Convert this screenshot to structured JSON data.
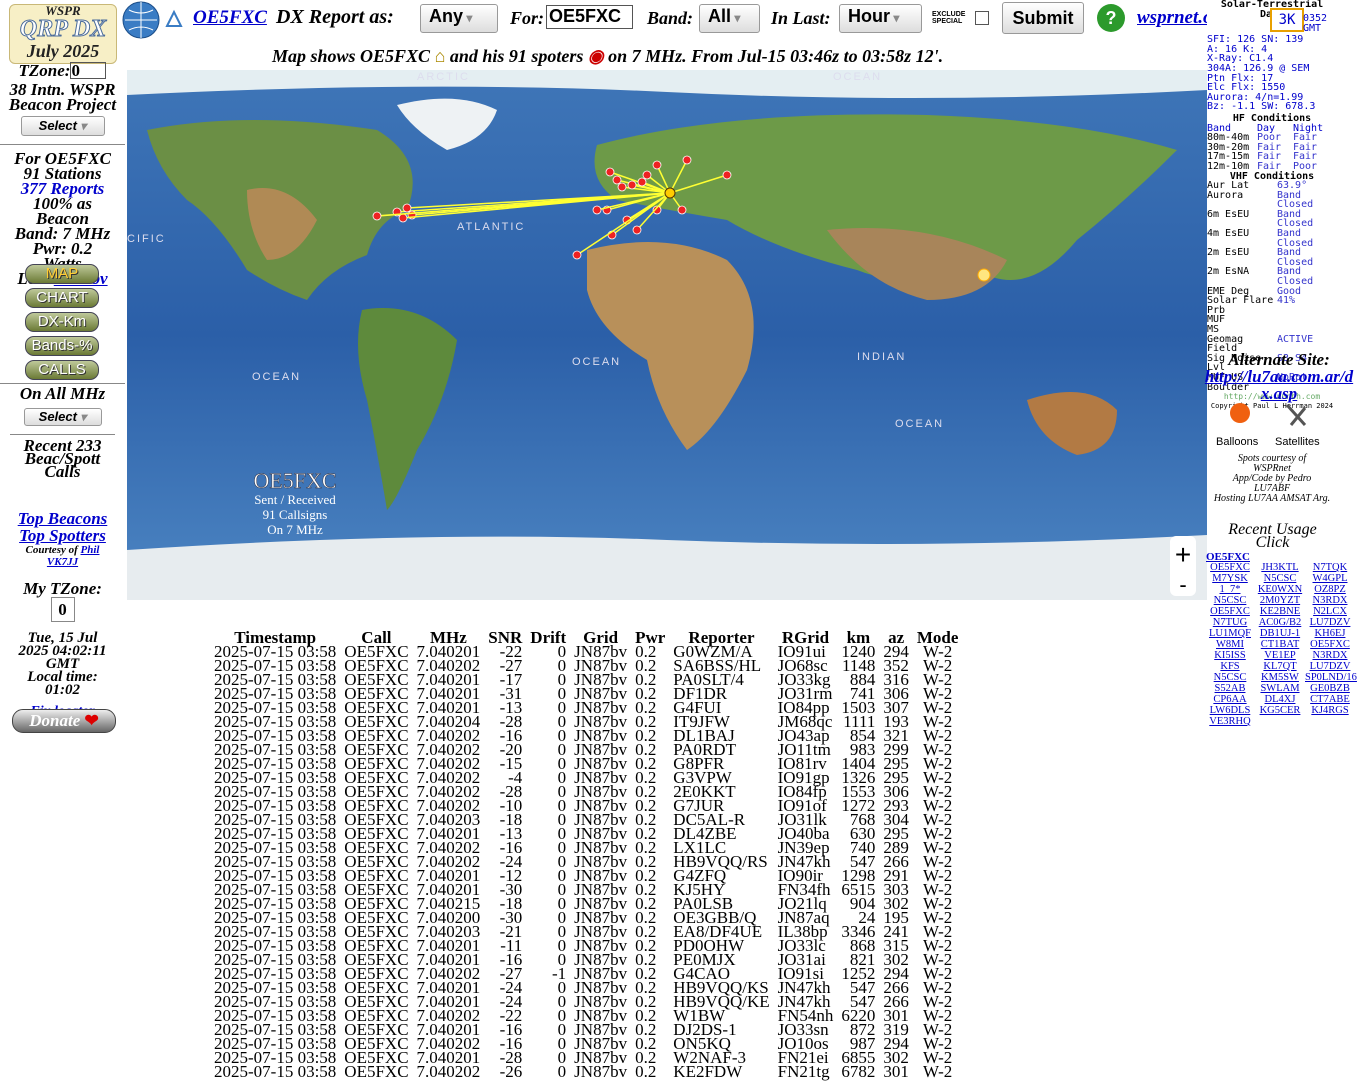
{
  "header": {
    "brand_top": "WSPR",
    "brand": "QRP DX",
    "brand_date": "July 2025",
    "link_call": "OE5FXC",
    "report_label": "DX Report as:",
    "report_select": "Any",
    "for_label": "For:",
    "for_value": "OE5FXC",
    "band_label": "Band:",
    "band_select": "All",
    "last_label": "In Last:",
    "last_select": "Hour",
    "exclude_label": "EXCLUDE SPECIAL",
    "submit": "Submit",
    "help": "?",
    "site_link": "wsprnet.org",
    "badge": "3K"
  },
  "caption": {
    "part1": "Map shows OE5FXC",
    "part2": "and his 91 spoters",
    "part3": "on 7 MHz. From Jul-15 03:46z to 03:58z 12'."
  },
  "sidebar": {
    "tzone_label": "TZone:",
    "tzone_value": "0",
    "beacon_project": "38 Intn. WSPR Beacon Project",
    "select": "Select",
    "for_call": "For OE5FXC",
    "stations": "91 Stations",
    "reports": "377 Reports",
    "beacon_pct": "100% as Beacon",
    "band": "Band: 7 MHz",
    "pwr": "Pwr: 0.2 Watts",
    "loc_label": "Loc:",
    "loc": "JN87bv",
    "buttons": [
      "MAP",
      "CHART",
      "DX-Km",
      "Bands-%",
      "CALLS"
    ],
    "all_mhz": "On All MHz",
    "select2": "Select",
    "recent": "Recent 233 Beac/Spott Calls",
    "top_beacons": "Top Beacons",
    "top_spotters": "Top Spotters",
    "courtesy": "Courtesy of",
    "courtesy_name": "Phil VK7JJ",
    "my_tz": "My TZone:",
    "my_tz_value": "0",
    "date": "Tue, 15 Jul 2025 04:02:11 GMT",
    "local_label": "Local time:",
    "local_time": "01:02",
    "fix": "Fix locator",
    "donate": "Donate"
  },
  "map": {
    "labels": [
      "ARCTIC",
      "OCEAN",
      "ATLANTIC",
      "OCEAN",
      "INDIAN",
      "OCEAN",
      "OCEAN",
      "CIFIC"
    ],
    "overlay_call": "OE5FXC",
    "overlay_1": "Sent / Received",
    "overlay_2": "91 Callsigns",
    "overlay_3": "On 7 MHz",
    "zoom_in": "+",
    "zoom_out": "-"
  },
  "solar": {
    "title": "Solar-Terrestrial Data",
    "time": "0352 GMT",
    "lines": [
      "SFI: 126  SN: 139",
      "A: 16  K: 4",
      "X-Ray: C1.4",
      "304A: 126.9 @ SEM",
      "Ptn Flx: 17",
      "Elc Flx: 1550",
      "Aurora: 4/n=1.99",
      "Bz: -1.1  SW: 678.3"
    ],
    "hf_title": "HF Conditions",
    "hf_rows": [
      [
        "Band",
        "Day",
        "Night"
      ],
      [
        "80m-40m",
        "Poor",
        "Fair"
      ],
      [
        "30m-20m",
        "Fair",
        "Fair"
      ],
      [
        "17m-15m",
        "Fair",
        "Fair"
      ],
      [
        "12m-10m",
        "Fair",
        "Poor"
      ]
    ],
    "vhf_title": "VHF Conditions",
    "vhf_rows": [
      [
        "Aur Lat",
        "63.9°"
      ],
      [
        "Aurora",
        "Band Closed"
      ],
      [
        "6m EsEU",
        "Band Closed"
      ],
      [
        "4m EsEU",
        "Band Closed"
      ],
      [
        "2m EsEU",
        "Band Closed"
      ],
      [
        "2m EsNA",
        "Band Closed"
      ],
      [
        "EME Deg",
        "Good"
      ],
      [
        "Solar Flare Prb",
        "41%"
      ],
      [
        "MUF",
        ""
      ],
      [
        "MS",
        ""
      ],
      [
        "Geomag Field",
        "ACTIVE"
      ],
      [
        "Sig Noise Lvl",
        "S3-S4"
      ],
      [
        "MUF US Boulder",
        "NoRpt"
      ]
    ],
    "url": "http://www.n0nbh.com",
    "copyright": "Copyright Paul L Herrman 2024"
  },
  "right": {
    "alt_title": "Alternate Site:",
    "alt_link": "http://lu7aa.com.ar/dx.asp",
    "balloons": "Balloons",
    "satellites": "Satellites",
    "credits": [
      "Spots courtesy of",
      "WSPRnet",
      "App/Code by Pedro",
      "LU7ABF",
      "Hosting LU7AA AMSAT Arg."
    ],
    "usage_title": "Recent Usage",
    "usage_click": "Click",
    "usage_header": "OE5FXC",
    "usage": [
      "OE5FXC",
      "JH3KTL",
      "N7TQK",
      "M7YSK",
      "N5CSC",
      "W4GPL",
      "1_7*",
      "KE0WXN",
      "OZ8PZ",
      "N5CSC",
      "2M0YZT",
      "N3RDX",
      "OE5FXC",
      "KE2BNE",
      "N2LCX",
      "N7TUG",
      "AC0G/B2",
      "LU7DZV",
      "LU1MQF",
      "DB1UJ-1",
      "KH6EJ",
      "W8MI",
      "CT1BAT",
      "OE5FXC",
      "KI5ISS",
      "VE1EP",
      "N3RDX",
      "KFS",
      "KL7QT",
      "LU7DZV",
      "N5CSC",
      "KM5SW",
      "SP0LND/16",
      "S52AB",
      "SWLAM",
      "GE0BZB",
      "CP6AA",
      "DL4XJ",
      "CT7ABE",
      "LW6DLS",
      "KG5CER",
      "KJ4RGS",
      "VE3RHQ"
    ]
  },
  "table": {
    "headers": [
      "Timestamp",
      "Call",
      "MHz",
      "SNR",
      "Drift",
      "Grid",
      "Pwr",
      "Reporter",
      "RGrid",
      "km",
      "az",
      "Mode"
    ],
    "rows": [
      [
        "2025-07-15 03:58",
        "OE5FXC",
        "7.040201",
        "-22",
        "0",
        "JN87bv",
        "0.2",
        "G0WZM/A",
        "IO91ui",
        "1240",
        "294",
        "W-2"
      ],
      [
        "2025-07-15 03:58",
        "OE5FXC",
        "7.040202",
        "-27",
        "0",
        "JN87bv",
        "0.2",
        "SA6BSS/HL",
        "JO68sc",
        "1148",
        "352",
        "W-2"
      ],
      [
        "2025-07-15 03:58",
        "OE5FXC",
        "7.040201",
        "-17",
        "0",
        "JN87bv",
        "0.2",
        "PA0SLT/4",
        "JO33kg",
        "884",
        "316",
        "W-2"
      ],
      [
        "2025-07-15 03:58",
        "OE5FXC",
        "7.040201",
        "-31",
        "0",
        "JN87bv",
        "0.2",
        "DF1DR",
        "JO31rm",
        "741",
        "306",
        "W-2"
      ],
      [
        "2025-07-15 03:58",
        "OE5FXC",
        "7.040201",
        "-13",
        "0",
        "JN87bv",
        "0.2",
        "G4FUI",
        "IO84pp",
        "1503",
        "307",
        "W-2"
      ],
      [
        "2025-07-15 03:58",
        "OE5FXC",
        "7.040204",
        "-28",
        "0",
        "JN87bv",
        "0.2",
        "IT9JFW",
        "JM68qc",
        "1111",
        "193",
        "W-2"
      ],
      [
        "2025-07-15 03:58",
        "OE5FXC",
        "7.040202",
        "-16",
        "0",
        "JN87bv",
        "0.2",
        "DL1BAJ",
        "JO43ap",
        "854",
        "321",
        "W-2"
      ],
      [
        "2025-07-15 03:58",
        "OE5FXC",
        "7.040202",
        "-20",
        "0",
        "JN87bv",
        "0.2",
        "PA0RDT",
        "JO11tm",
        "983",
        "299",
        "W-2"
      ],
      [
        "2025-07-15 03:58",
        "OE5FXC",
        "7.040202",
        "-15",
        "0",
        "JN87bv",
        "0.2",
        "G8PFR",
        "IO81rv",
        "1404",
        "295",
        "W-2"
      ],
      [
        "2025-07-15 03:58",
        "OE5FXC",
        "7.040202",
        "-4",
        "0",
        "JN87bv",
        "0.2",
        "G3VPW",
        "IO91gp",
        "1326",
        "295",
        "W-2"
      ],
      [
        "2025-07-15 03:58",
        "OE5FXC",
        "7.040202",
        "-28",
        "0",
        "JN87bv",
        "0.2",
        "2E0KKT",
        "IO84fp",
        "1553",
        "306",
        "W-2"
      ],
      [
        "2025-07-15 03:58",
        "OE5FXC",
        "7.040202",
        "-10",
        "0",
        "JN87bv",
        "0.2",
        "G7JUR",
        "IO91of",
        "1272",
        "293",
        "W-2"
      ],
      [
        "2025-07-15 03:58",
        "OE5FXC",
        "7.040203",
        "-18",
        "0",
        "JN87bv",
        "0.2",
        "DC5AL-R",
        "JO31lk",
        "768",
        "304",
        "W-2"
      ],
      [
        "2025-07-15 03:58",
        "OE5FXC",
        "7.040201",
        "-13",
        "0",
        "JN87bv",
        "0.2",
        "DL4ZBE",
        "JO40ba",
        "630",
        "295",
        "W-2"
      ],
      [
        "2025-07-15 03:58",
        "OE5FXC",
        "7.040202",
        "-16",
        "0",
        "JN87bv",
        "0.2",
        "LX1LC",
        "JN39ep",
        "740",
        "289",
        "W-2"
      ],
      [
        "2025-07-15 03:58",
        "OE5FXC",
        "7.040202",
        "-24",
        "0",
        "JN87bv",
        "0.2",
        "HB9VQQ/RS",
        "JN47kh",
        "547",
        "266",
        "W-2"
      ],
      [
        "2025-07-15 03:58",
        "OE5FXC",
        "7.040201",
        "-12",
        "0",
        "JN87bv",
        "0.2",
        "G4ZFQ",
        "IO90ir",
        "1298",
        "291",
        "W-2"
      ],
      [
        "2025-07-15 03:58",
        "OE5FXC",
        "7.040201",
        "-30",
        "0",
        "JN87bv",
        "0.2",
        "KJ5HY",
        "FN34fh",
        "6515",
        "303",
        "W-2"
      ],
      [
        "2025-07-15 03:58",
        "OE5FXC",
        "7.040215",
        "-18",
        "0",
        "JN87bv",
        "0.2",
        "PA0LSB",
        "JO21lq",
        "904",
        "302",
        "W-2"
      ],
      [
        "2025-07-15 03:58",
        "OE5FXC",
        "7.040200",
        "-30",
        "0",
        "JN87bv",
        "0.2",
        "OE3GBB/Q",
        "JN87aq",
        "24",
        "195",
        "W-2"
      ],
      [
        "2025-07-15 03:58",
        "OE5FXC",
        "7.040203",
        "-21",
        "0",
        "JN87bv",
        "0.2",
        "EA8/DF4UE",
        "IL38bp",
        "3346",
        "241",
        "W-2"
      ],
      [
        "2025-07-15 03:58",
        "OE5FXC",
        "7.040201",
        "-11",
        "0",
        "JN87bv",
        "0.2",
        "PD0OHW",
        "JO33lc",
        "868",
        "315",
        "W-2"
      ],
      [
        "2025-07-15 03:58",
        "OE5FXC",
        "7.040201",
        "-16",
        "0",
        "JN87bv",
        "0.2",
        "PE0MJX",
        "JO31ai",
        "821",
        "302",
        "W-2"
      ],
      [
        "2025-07-15 03:58",
        "OE5FXC",
        "7.040202",
        "-27",
        "-1",
        "JN87bv",
        "0.2",
        "G4CAO",
        "IO91si",
        "1252",
        "294",
        "W-2"
      ],
      [
        "2025-07-15 03:58",
        "OE5FXC",
        "7.040201",
        "-24",
        "0",
        "JN87bv",
        "0.2",
        "HB9VQQ/KS",
        "JN47kh",
        "547",
        "266",
        "W-2"
      ],
      [
        "2025-07-15 03:58",
        "OE5FXC",
        "7.040201",
        "-24",
        "0",
        "JN87bv",
        "0.2",
        "HB9VQQ/KE",
        "JN47kh",
        "547",
        "266",
        "W-2"
      ],
      [
        "2025-07-15 03:58",
        "OE5FXC",
        "7.040202",
        "-22",
        "0",
        "JN87bv",
        "0.2",
        "W1BW",
        "FN54nh",
        "6220",
        "301",
        "W-2"
      ],
      [
        "2025-07-15 03:58",
        "OE5FXC",
        "7.040201",
        "-16",
        "0",
        "JN87bv",
        "0.2",
        "DJ2DS-1",
        "JO33sn",
        "872",
        "319",
        "W-2"
      ],
      [
        "2025-07-15 03:58",
        "OE5FXC",
        "7.040202",
        "-16",
        "0",
        "JN87bv",
        "0.2",
        "ON5KQ",
        "JO10os",
        "987",
        "294",
        "W-2"
      ],
      [
        "2025-07-15 03:58",
        "OE5FXC",
        "7.040201",
        "-28",
        "0",
        "JN87bv",
        "0.2",
        "W2NAF-3",
        "FN21ei",
        "6855",
        "302",
        "W-2"
      ],
      [
        "2025-07-15 03:58",
        "OE5FXC",
        "7.040202",
        "-26",
        "0",
        "JN87bv",
        "0.2",
        "KE2FDW",
        "FN21tg",
        "6782",
        "301",
        "W-2"
      ]
    ]
  }
}
